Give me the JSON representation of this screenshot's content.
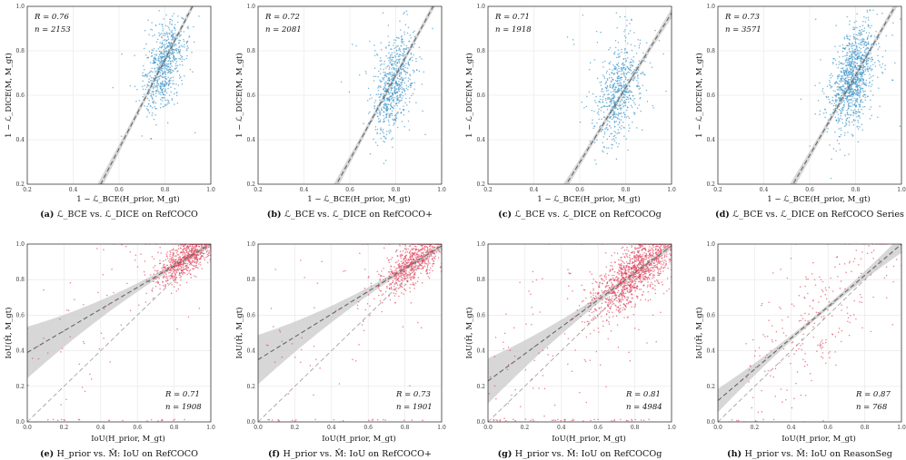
{
  "colors": {
    "blue": "#3c94c8",
    "red": "#e2475f",
    "band": "#c9c9c9",
    "line": "#666666",
    "grid": "#e6e6e6"
  },
  "chart_data": [
    {
      "type": "scatter",
      "title": "",
      "xlabel": "1 − ℒ_BCE(H_prior, M_gt)",
      "ylabel": "1 − ℒ_DICE(M, M_gt)",
      "xlim": [
        0.2,
        1.0
      ],
      "ylim": [
        0.2,
        1.0
      ],
      "xticks": [
        "0.2",
        "0.4",
        "0.6",
        "0.8",
        "1.0"
      ],
      "yticks": [
        "0.2",
        "0.4",
        "0.6",
        "0.8",
        "1.0"
      ],
      "stats": {
        "R_label": "R = 0.76",
        "n_label": "n = 2153"
      },
      "fit": {
        "slope": 2.0,
        "intercept": -0.84
      },
      "identity": false,
      "cloud": {
        "n": 700,
        "cx": 0.8,
        "cy": 0.74,
        "sx": 0.045,
        "sy": 0.09,
        "slope": 1.1
      },
      "caption_label": "(a)",
      "caption": "ℒ_BCE vs. ℒ_DICE on RefCOCO"
    },
    {
      "type": "scatter",
      "title": "",
      "xlabel": "1 − ℒ_BCE(H_prior, M_gt)",
      "ylabel": "1 − ℒ_DICE(M, M_gt)",
      "xlim": [
        0.2,
        1.0
      ],
      "ylim": [
        0.2,
        1.0
      ],
      "xticks": [
        "0.2",
        "0.4",
        "0.6",
        "0.8",
        "1.0"
      ],
      "yticks": [
        "0.2",
        "0.4",
        "0.6",
        "0.8",
        "1.0"
      ],
      "stats": {
        "R_label": "R = 0.72",
        "n_label": "n = 2081"
      },
      "fit": {
        "slope": 1.9,
        "intercept": -0.83
      },
      "identity": false,
      "cloud": {
        "n": 700,
        "cx": 0.79,
        "cy": 0.65,
        "sx": 0.045,
        "sy": 0.1,
        "slope": 1.1
      },
      "caption_label": "(b)",
      "caption": "ℒ_BCE vs. ℒ_DICE on RefCOCO+"
    },
    {
      "type": "scatter",
      "title": "",
      "xlabel": "1 − ℒ_BCE(H_prior, M_gt)",
      "ylabel": "1 − ℒ_DICE(M, M_gt)",
      "xlim": [
        0.2,
        1.0
      ],
      "ylim": [
        0.2,
        1.0
      ],
      "xticks": [
        "0.2",
        "0.4",
        "0.6",
        "0.8",
        "1.0"
      ],
      "yticks": [
        "0.2",
        "0.4",
        "0.6",
        "0.8",
        "1.0"
      ],
      "stats": {
        "R_label": "R = 0.71",
        "n_label": "n = 1918"
      },
      "fit": {
        "slope": 1.68,
        "intercept": -0.71
      },
      "identity": false,
      "cloud": {
        "n": 650,
        "cx": 0.77,
        "cy": 0.62,
        "sx": 0.05,
        "sy": 0.11,
        "slope": 1.0
      },
      "caption_label": "(c)",
      "caption": "ℒ_BCE vs. ℒ_DICE on RefCOCOg"
    },
    {
      "type": "scatter",
      "title": "",
      "xlabel": "1 − ℒ_BCE(H_prior, M_gt)",
      "ylabel": "1 − ℒ_DICE(M, M_gt)",
      "xlim": [
        0.2,
        1.0
      ],
      "ylim": [
        0.2,
        1.0
      ],
      "xticks": [
        "0.2",
        "0.4",
        "0.6",
        "0.8",
        "1.0"
      ],
      "yticks": [
        "0.2",
        "0.4",
        "0.6",
        "0.8",
        "1.0"
      ],
      "stats": {
        "R_label": "R = 0.73",
        "n_label": "n = 3571"
      },
      "fit": {
        "slope": 1.8,
        "intercept": -0.75
      },
      "identity": false,
      "cloud": {
        "n": 1100,
        "cx": 0.79,
        "cy": 0.68,
        "sx": 0.05,
        "sy": 0.11,
        "slope": 1.1
      },
      "caption_label": "(d)",
      "caption": "ℒ_BCE vs. ℒ_DICE on RefCOCO Series"
    },
    {
      "type": "scatter",
      "title": "",
      "xlabel": "IoU(H_prior, M_gt)",
      "ylabel": "IoU(Ĥ, M_gt)",
      "xlim": [
        0.0,
        1.0
      ],
      "ylim": [
        0.0,
        1.0
      ],
      "xticks": [
        "0.0",
        "0.2",
        "0.4",
        "0.6",
        "0.8",
        "1.0"
      ],
      "yticks": [
        "0.0",
        "0.2",
        "0.4",
        "0.6",
        "0.8",
        "1.0"
      ],
      "stats": {
        "R_label": "R = 0.71",
        "n_label": "n = 1908"
      },
      "fit": {
        "slope": 0.61,
        "intercept": 0.39
      },
      "identity": true,
      "cloud": {
        "n": 800,
        "cx": 0.86,
        "cy": 0.92,
        "sx": 0.08,
        "sy": 0.05,
        "slope": 0.6
      },
      "caption_label": "(e)",
      "caption": "H_prior vs. M̂: IoU on RefCOCO"
    },
    {
      "type": "scatter",
      "title": "",
      "xlabel": "IoU(H_prior, M_gt)",
      "ylabel": "IoU(Ĥ, M_gt)",
      "xlim": [
        0.0,
        1.0
      ],
      "ylim": [
        0.0,
        1.0
      ],
      "xticks": [
        "0.0",
        "0.2",
        "0.4",
        "0.6",
        "0.8",
        "1.0"
      ],
      "yticks": [
        "0.0",
        "0.2",
        "0.4",
        "0.6",
        "0.8",
        "1.0"
      ],
      "stats": {
        "R_label": "R = 0.73",
        "n_label": "n = 1901"
      },
      "fit": {
        "slope": 0.64,
        "intercept": 0.35
      },
      "identity": true,
      "cloud": {
        "n": 800,
        "cx": 0.84,
        "cy": 0.89,
        "sx": 0.09,
        "sy": 0.06,
        "slope": 0.65
      },
      "caption_label": "(f)",
      "caption": "H_prior vs. M̂: IoU on RefCOCO+"
    },
    {
      "type": "scatter",
      "title": "",
      "xlabel": "IoU(H_prior, M_gt)",
      "ylabel": "IoU(Ĥ, M_gt)",
      "xlim": [
        0.0,
        1.0
      ],
      "ylim": [
        0.0,
        1.0
      ],
      "xticks": [
        "0.0",
        "0.2",
        "0.4",
        "0.6",
        "0.8",
        "1.0"
      ],
      "yticks": [
        "0.0",
        "0.2",
        "0.4",
        "0.6",
        "0.8",
        "1.0"
      ],
      "stats": {
        "R_label": "R = 0.81",
        "n_label": "n = 4984"
      },
      "fit": {
        "slope": 0.76,
        "intercept": 0.23
      },
      "identity": true,
      "cloud": {
        "n": 1400,
        "cx": 0.8,
        "cy": 0.84,
        "sx": 0.12,
        "sy": 0.08,
        "slope": 0.75
      },
      "caption_label": "(g)",
      "caption": "H_prior vs. M̂: IoU on RefCOCOg"
    },
    {
      "type": "scatter",
      "title": "",
      "xlabel": "IoU(H_prior, M_gt)",
      "ylabel": "IoU(Ĥ, M_gt)",
      "xlim": [
        0.0,
        1.0
      ],
      "ylim": [
        0.0,
        1.0
      ],
      "xticks": [
        "0.0",
        "0.2",
        "0.4",
        "0.6",
        "0.8",
        "1.0"
      ],
      "yticks": [
        "0.0",
        "0.2",
        "0.4",
        "0.6",
        "0.8",
        "1.0"
      ],
      "stats": {
        "R_label": "R = 0.87",
        "n_label": "n = 768"
      },
      "fit": {
        "slope": 0.88,
        "intercept": 0.12
      },
      "identity": true,
      "cloud": {
        "n": 260,
        "cx": 0.55,
        "cy": 0.6,
        "sx": 0.22,
        "sy": 0.2,
        "slope": 0.88
      },
      "caption_label": "(h)",
      "caption": "H_prior vs. M̂: IoU on ReasonSeg"
    }
  ]
}
